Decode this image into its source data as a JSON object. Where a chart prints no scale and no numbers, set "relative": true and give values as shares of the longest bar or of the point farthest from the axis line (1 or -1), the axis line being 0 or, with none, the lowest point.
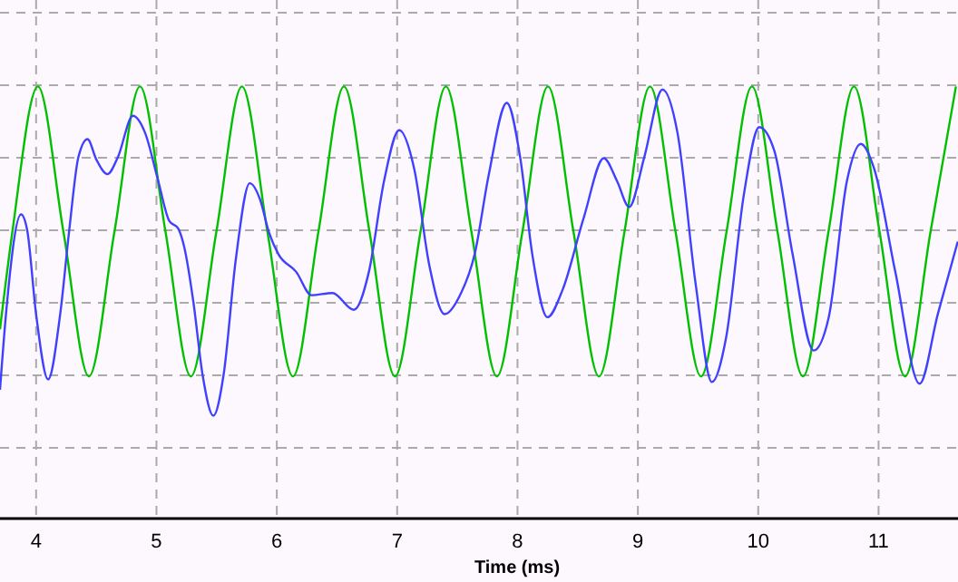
{
  "chart_data": {
    "type": "line",
    "xlabel": "Time (ms)",
    "relative": true,
    "grid": true,
    "marker": "none",
    "line_style": "solid",
    "xlim": [
      3.7,
      11.66
    ],
    "xticks": [
      4,
      5,
      6,
      7,
      8,
      9,
      10,
      11
    ],
    "series": [
      {
        "color": "#00c000",
        "x": [
          3.7,
          3.803,
          4.015,
          4.227,
          4.439,
          4.651,
          4.863,
          5.075,
          5.286,
          5.498,
          5.71,
          5.922,
          6.134,
          6.346,
          6.558,
          6.77,
          6.982,
          7.194,
          7.405,
          7.617,
          7.829,
          8.041,
          8.253,
          8.465,
          8.677,
          8.889,
          9.101,
          9.313,
          9.525,
          9.737,
          9.948,
          10.16,
          10.372,
          10.584,
          10.796,
          11.008,
          11.22,
          11.432,
          11.643
        ],
        "values": [
          0.438,
          0.664,
          1,
          0.664,
          0.329,
          0.664,
          1,
          0.664,
          0.329,
          0.664,
          1,
          0.664,
          0.329,
          0.664,
          1,
          0.664,
          0.329,
          0.664,
          1,
          0.664,
          0.329,
          0.664,
          1,
          0.664,
          0.329,
          0.664,
          1,
          0.664,
          0.329,
          0.664,
          1,
          0.664,
          0.329,
          0.664,
          1,
          0.664,
          0.329,
          0.664,
          1
        ]
      },
      {
        "color": "#4040ff",
        "x": [
          3.7,
          3.75,
          3.875,
          3.925,
          4.0,
          4.1,
          4.2,
          4.276,
          4.351,
          4.427,
          4.502,
          4.593,
          4.679,
          4.804,
          4.905,
          5.015,
          5.106,
          5.181,
          5.232,
          5.307,
          5.383,
          5.473,
          5.558,
          5.659,
          5.775,
          5.86,
          5.935,
          6.011,
          6.161,
          6.288,
          6.463,
          6.64,
          6.765,
          6.891,
          7.017,
          7.142,
          7.268,
          7.394,
          7.519,
          7.645,
          7.76,
          7.911,
          8.022,
          8.122,
          8.249,
          8.374,
          8.551,
          8.717,
          8.827,
          8.928,
          9.053,
          9.204,
          9.329,
          9.48,
          9.615,
          9.732,
          9.882,
          10.008,
          10.134,
          10.285,
          10.46,
          10.586,
          10.737,
          10.852,
          10.964,
          11.139,
          11.341,
          11.492,
          11.658
        ],
        "values": [
          0.298,
          0.474,
          0.704,
          0.669,
          0.473,
          0.322,
          0.473,
          0.669,
          0.836,
          0.878,
          0.83,
          0.797,
          0.836,
          0.932,
          0.893,
          0.781,
          0.689,
          0.671,
          0.627,
          0.501,
          0.333,
          0.238,
          0.333,
          0.599,
          0.776,
          0.739,
          0.662,
          0.613,
          0.571,
          0.517,
          0.522,
          0.483,
          0.571,
          0.781,
          0.899,
          0.809,
          0.585,
          0.473,
          0.515,
          0.613,
          0.794,
          0.962,
          0.836,
          0.613,
          0.466,
          0.529,
          0.697,
          0.834,
          0.781,
          0.721,
          0.836,
          0.993,
          0.893,
          0.543,
          0.316,
          0.417,
          0.752,
          0.906,
          0.851,
          0.613,
          0.389,
          0.466,
          0.781,
          0.867,
          0.809,
          0.571,
          0.312,
          0.473,
          0.641
        ]
      }
    ]
  }
}
